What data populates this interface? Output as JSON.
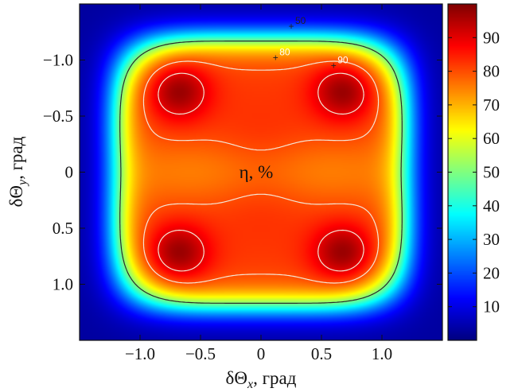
{
  "chart_data": {
    "type": "heatmap",
    "title": "",
    "annotation": "η, %",
    "xlabel": "δΘ",
    "xlabel_sub": "x",
    "xlabel_unit": ", град",
    "ylabel": "δΘ",
    "ylabel_sub": "y",
    "ylabel_unit": ", град",
    "xlim": [
      -1.5,
      1.5
    ],
    "ylim": [
      -1.5,
      1.5
    ],
    "y_inverted": true,
    "x_ticks": [
      -1.0,
      -0.5,
      0,
      0.5,
      1.0
    ],
    "x_tick_labels": [
      "−1.0",
      "−0.5",
      "0",
      "0.5",
      "1.0"
    ],
    "y_ticks": [
      -1.0,
      -0.5,
      0,
      0.5,
      1.0
    ],
    "y_tick_labels": [
      "−1.0",
      "−0.5",
      "0",
      "0.5",
      "1.0"
    ],
    "colorbar": {
      "range": [
        0,
        100
      ],
      "ticks": [
        10,
        20,
        30,
        40,
        50,
        60,
        70,
        80,
        90
      ],
      "tick_labels": [
        "10",
        "20",
        "30",
        "40",
        "50",
        "60",
        "70",
        "80",
        "90"
      ],
      "colormap": "jet"
    },
    "contours": [
      {
        "level": 50,
        "label": "50",
        "color": "#2a2a2a",
        "label_at": [
          0.25,
          -1.3
        ]
      },
      {
        "level": 80,
        "label": "80",
        "color": "#f4e6d6",
        "label_at": [
          0.12,
          -1.02
        ]
      },
      {
        "level": 90,
        "label": "90",
        "color": "#f4e6d6",
        "label_at": [
          0.6,
          -0.95
        ]
      }
    ],
    "field": {
      "description_values": "efficiency η in percent",
      "center_value": 85,
      "peaks": [
        {
          "x": -0.68,
          "y": -0.72,
          "value": 98
        },
        {
          "x": 0.68,
          "y": -0.72,
          "value": 98
        },
        {
          "x": -0.68,
          "y": 0.72,
          "value": 98
        },
        {
          "x": 0.68,
          "y": 0.72,
          "value": 98
        }
      ],
      "edge_value": 3
    }
  }
}
